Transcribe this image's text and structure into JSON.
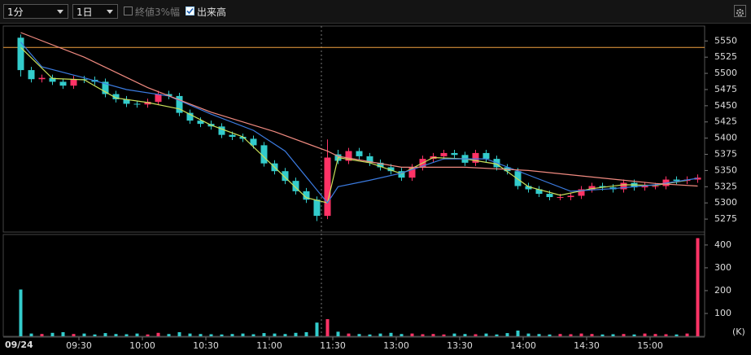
{
  "toolbar": {
    "interval": "1分",
    "range": "1日",
    "option_range": "終値3%幅",
    "option_volume": "出来高"
  },
  "chart_data": {
    "type": "candlestick",
    "date": "09/24",
    "up_color": "#ff3366",
    "down_color": "#33cccc",
    "x": [
      "09:00",
      "09:05",
      "09:10",
      "09:15",
      "09:20",
      "09:25",
      "09:30",
      "09:35",
      "09:40",
      "09:45",
      "09:50",
      "09:55",
      "10:00",
      "10:05",
      "10:10",
      "10:15",
      "10:20",
      "10:25",
      "10:30",
      "10:35",
      "10:40",
      "10:45",
      "10:50",
      "10:55",
      "11:00",
      "11:05",
      "11:10",
      "11:15",
      "11:20",
      "11:25",
      "12:30",
      "12:35",
      "12:40",
      "12:45",
      "12:50",
      "12:55",
      "13:00",
      "13:05",
      "13:10",
      "13:15",
      "13:20",
      "13:25",
      "13:30",
      "13:35",
      "13:40",
      "13:45",
      "13:50",
      "13:55",
      "14:00",
      "14:05",
      "14:10",
      "14:15",
      "14:20",
      "14:25",
      "14:30",
      "14:35",
      "14:40",
      "14:45",
      "14:50",
      "14:55",
      "15:00",
      "15:05",
      "15:10",
      "15:15",
      "15:20"
    ],
    "open": [
      5555,
      5505,
      5491,
      5493,
      5487,
      5481,
      5491,
      5490,
      5487,
      5468,
      5460,
      5453,
      5452,
      5456,
      5468,
      5465,
      5439,
      5427,
      5422,
      5418,
      5405,
      5402,
      5399,
      5389,
      5361,
      5349,
      5334,
      5318,
      5305,
      5280,
      5375,
      5365,
      5380,
      5372,
      5362,
      5355,
      5349,
      5339,
      5355,
      5368,
      5372,
      5377,
      5374,
      5362,
      5377,
      5368,
      5355,
      5349,
      5326,
      5321,
      5314,
      5309,
      5309,
      5311,
      5321,
      5326,
      5324,
      5321,
      5331,
      5324,
      5326,
      5326,
      5336,
      5334,
      5336
    ],
    "high": [
      5560,
      5510,
      5498,
      5498,
      5492,
      5496,
      5496,
      5495,
      5492,
      5473,
      5465,
      5458,
      5461,
      5473,
      5473,
      5470,
      5444,
      5432,
      5427,
      5423,
      5410,
      5407,
      5404,
      5394,
      5366,
      5354,
      5339,
      5323,
      5310,
      5398,
      5382,
      5385,
      5385,
      5377,
      5367,
      5360,
      5354,
      5360,
      5373,
      5377,
      5382,
      5382,
      5379,
      5382,
      5382,
      5373,
      5360,
      5354,
      5331,
      5326,
      5319,
      5314,
      5316,
      5326,
      5331,
      5331,
      5329,
      5336,
      5336,
      5331,
      5331,
      5341,
      5341,
      5341,
      5344
    ],
    "low": [
      5495,
      5486,
      5486,
      5482,
      5476,
      5476,
      5485,
      5482,
      5463,
      5455,
      5448,
      5447,
      5447,
      5451,
      5460,
      5434,
      5422,
      5417,
      5413,
      5400,
      5397,
      5394,
      5384,
      5356,
      5344,
      5329,
      5313,
      5300,
      5272,
      5275,
      5360,
      5360,
      5367,
      5357,
      5350,
      5344,
      5334,
      5334,
      5350,
      5363,
      5367,
      5369,
      5357,
      5357,
      5363,
      5350,
      5344,
      5321,
      5316,
      5309,
      5304,
      5304,
      5304,
      5306,
      5316,
      5319,
      5316,
      5316,
      5319,
      5319,
      5321,
      5321,
      5329,
      5329,
      5331
    ],
    "close": [
      5505,
      5491,
      5493,
      5487,
      5481,
      5491,
      5490,
      5487,
      5468,
      5460,
      5453,
      5452,
      5456,
      5468,
      5465,
      5439,
      5427,
      5422,
      5418,
      5405,
      5402,
      5399,
      5389,
      5361,
      5349,
      5334,
      5318,
      5305,
      5280,
      5370,
      5365,
      5380,
      5372,
      5362,
      5355,
      5349,
      5339,
      5355,
      5368,
      5372,
      5377,
      5374,
      5362,
      5377,
      5368,
      5355,
      5349,
      5326,
      5321,
      5314,
      5309,
      5309,
      5311,
      5321,
      5326,
      5324,
      5321,
      5331,
      5324,
      5326,
      5326,
      5336,
      5334,
      5336,
      5339
    ],
    "volume": [
      205,
      12,
      10,
      15,
      18,
      10,
      12,
      8,
      14,
      10,
      9,
      12,
      8,
      15,
      10,
      18,
      12,
      10,
      9,
      8,
      10,
      12,
      9,
      14,
      12,
      10,
      15,
      18,
      60,
      75,
      20,
      12,
      10,
      8,
      12,
      15,
      10,
      12,
      9,
      10,
      8,
      12,
      10,
      9,
      12,
      8,
      14,
      25,
      12,
      10,
      8,
      10,
      9,
      12,
      10,
      8,
      9,
      10,
      8,
      12,
      10,
      9,
      8,
      12,
      430
    ],
    "lines": [
      {
        "color": "#c8e05a",
        "x": [
          "09:00",
          "09:15",
          "09:30",
          "09:45",
          "10:00",
          "10:15",
          "10:30",
          "10:45",
          "11:00",
          "11:15",
          "11:25",
          "12:30",
          "12:45",
          "13:00",
          "13:15",
          "13:30",
          "13:45",
          "14:00",
          "14:15",
          "14:30",
          "14:45",
          "15:00",
          "15:15"
        ],
        "values": [
          5540,
          5492,
          5490,
          5462,
          5455,
          5445,
          5420,
          5402,
          5355,
          5308,
          5300,
          5370,
          5362,
          5345,
          5370,
          5368,
          5360,
          5325,
          5312,
          5322,
          5328,
          5327,
          5335
        ]
      },
      {
        "color": "#3b7be0",
        "x": [
          "09:00",
          "09:10",
          "09:30",
          "09:50",
          "10:10",
          "10:30",
          "10:50",
          "11:05",
          "11:25",
          "12:30",
          "12:45",
          "13:00",
          "13:20",
          "13:40",
          "14:00",
          "14:20",
          "14:40",
          "15:00",
          "15:20"
        ],
        "values": [
          5548,
          5510,
          5493,
          5475,
          5465,
          5437,
          5412,
          5380,
          5300,
          5325,
          5335,
          5346,
          5368,
          5368,
          5343,
          5318,
          5322,
          5328,
          5338
        ]
      },
      {
        "color": "#f08a80",
        "x": [
          "09:00",
          "09:30",
          "10:00",
          "10:30",
          "11:00",
          "11:25",
          "12:30",
          "13:00",
          "13:30",
          "14:00",
          "14:30",
          "15:00",
          "15:20"
        ],
        "values": [
          5563,
          5525,
          5478,
          5440,
          5410,
          5380,
          5372,
          5355,
          5355,
          5350,
          5340,
          5330,
          5326
        ]
      }
    ],
    "ref_line": {
      "value": 5540,
      "color": "#f0a040"
    },
    "ylim": [
      5255,
      5573
    ],
    "yticks": [
      5275,
      5300,
      5325,
      5350,
      5375,
      5400,
      5425,
      5450,
      5475,
      5500,
      5525,
      5550
    ],
    "volume_ylim": [
      0,
      446
    ],
    "volume_ticks": [
      100,
      200,
      300,
      400
    ],
    "volume_unit": "(K)",
    "xticks": [
      "09:30",
      "10:00",
      "10:30",
      "11:00",
      "11:30",
      "13:00",
      "13:30",
      "14:00",
      "14:30",
      "15:00"
    ],
    "grid": false
  }
}
